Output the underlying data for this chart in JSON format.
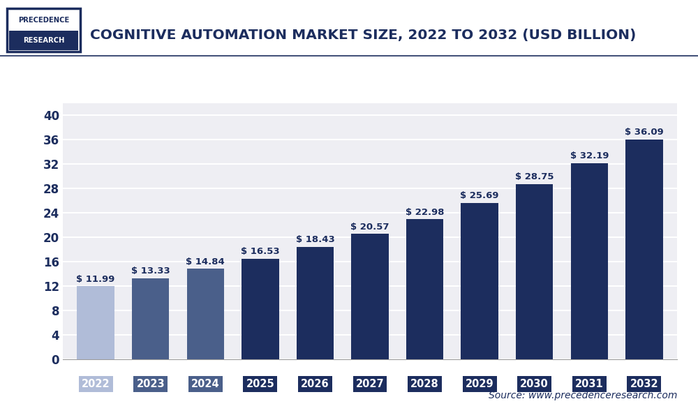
{
  "title": "COGNITIVE AUTOMATION MARKET SIZE, 2022 TO 2032 (USD BILLION)",
  "years": [
    "2022",
    "2023",
    "2024",
    "2025",
    "2026",
    "2027",
    "2028",
    "2029",
    "2030",
    "2031",
    "2032"
  ],
  "values": [
    11.99,
    13.33,
    14.84,
    16.53,
    18.43,
    20.57,
    22.98,
    25.69,
    28.75,
    32.19,
    36.09
  ],
  "bar_colors": [
    "#b0bcd8",
    "#4a5f8a",
    "#4a5f8a",
    "#1c2d5e",
    "#1c2d5e",
    "#1c2d5e",
    "#1c2d5e",
    "#1c2d5e",
    "#1c2d5e",
    "#1c2d5e",
    "#1c2d5e"
  ],
  "tick_label_bg_colors": [
    "#b0bcd8",
    "#4a5f8a",
    "#4a5f8a",
    "#1c2d5e",
    "#1c2d5e",
    "#1c2d5e",
    "#1c2d5e",
    "#1c2d5e",
    "#1c2d5e",
    "#1c2d5e",
    "#1c2d5e"
  ],
  "yticks": [
    0,
    4,
    8,
    12,
    16,
    20,
    24,
    28,
    32,
    36,
    40
  ],
  "ylim": [
    0,
    42
  ],
  "background_color": "#ffffff",
  "plot_bg_color": "#eeeef3",
  "grid_color": "#ffffff",
  "title_color": "#1c2d5e",
  "source_text": "Source: www.precedenceresearch.com",
  "logo_text_top": "PRECEDENCE",
  "logo_text_bottom": "RESEARCH",
  "title_fontsize": 14.5,
  "value_fontsize": 9.5,
  "ytick_fontsize": 12,
  "xtick_fontsize": 10.5,
  "source_fontsize": 10,
  "logo_top_color": "#ffffff",
  "logo_bottom_color": "#1c2d5e",
  "logo_border_color": "#1c2d5e",
  "separator_color": "#1c2d5e"
}
